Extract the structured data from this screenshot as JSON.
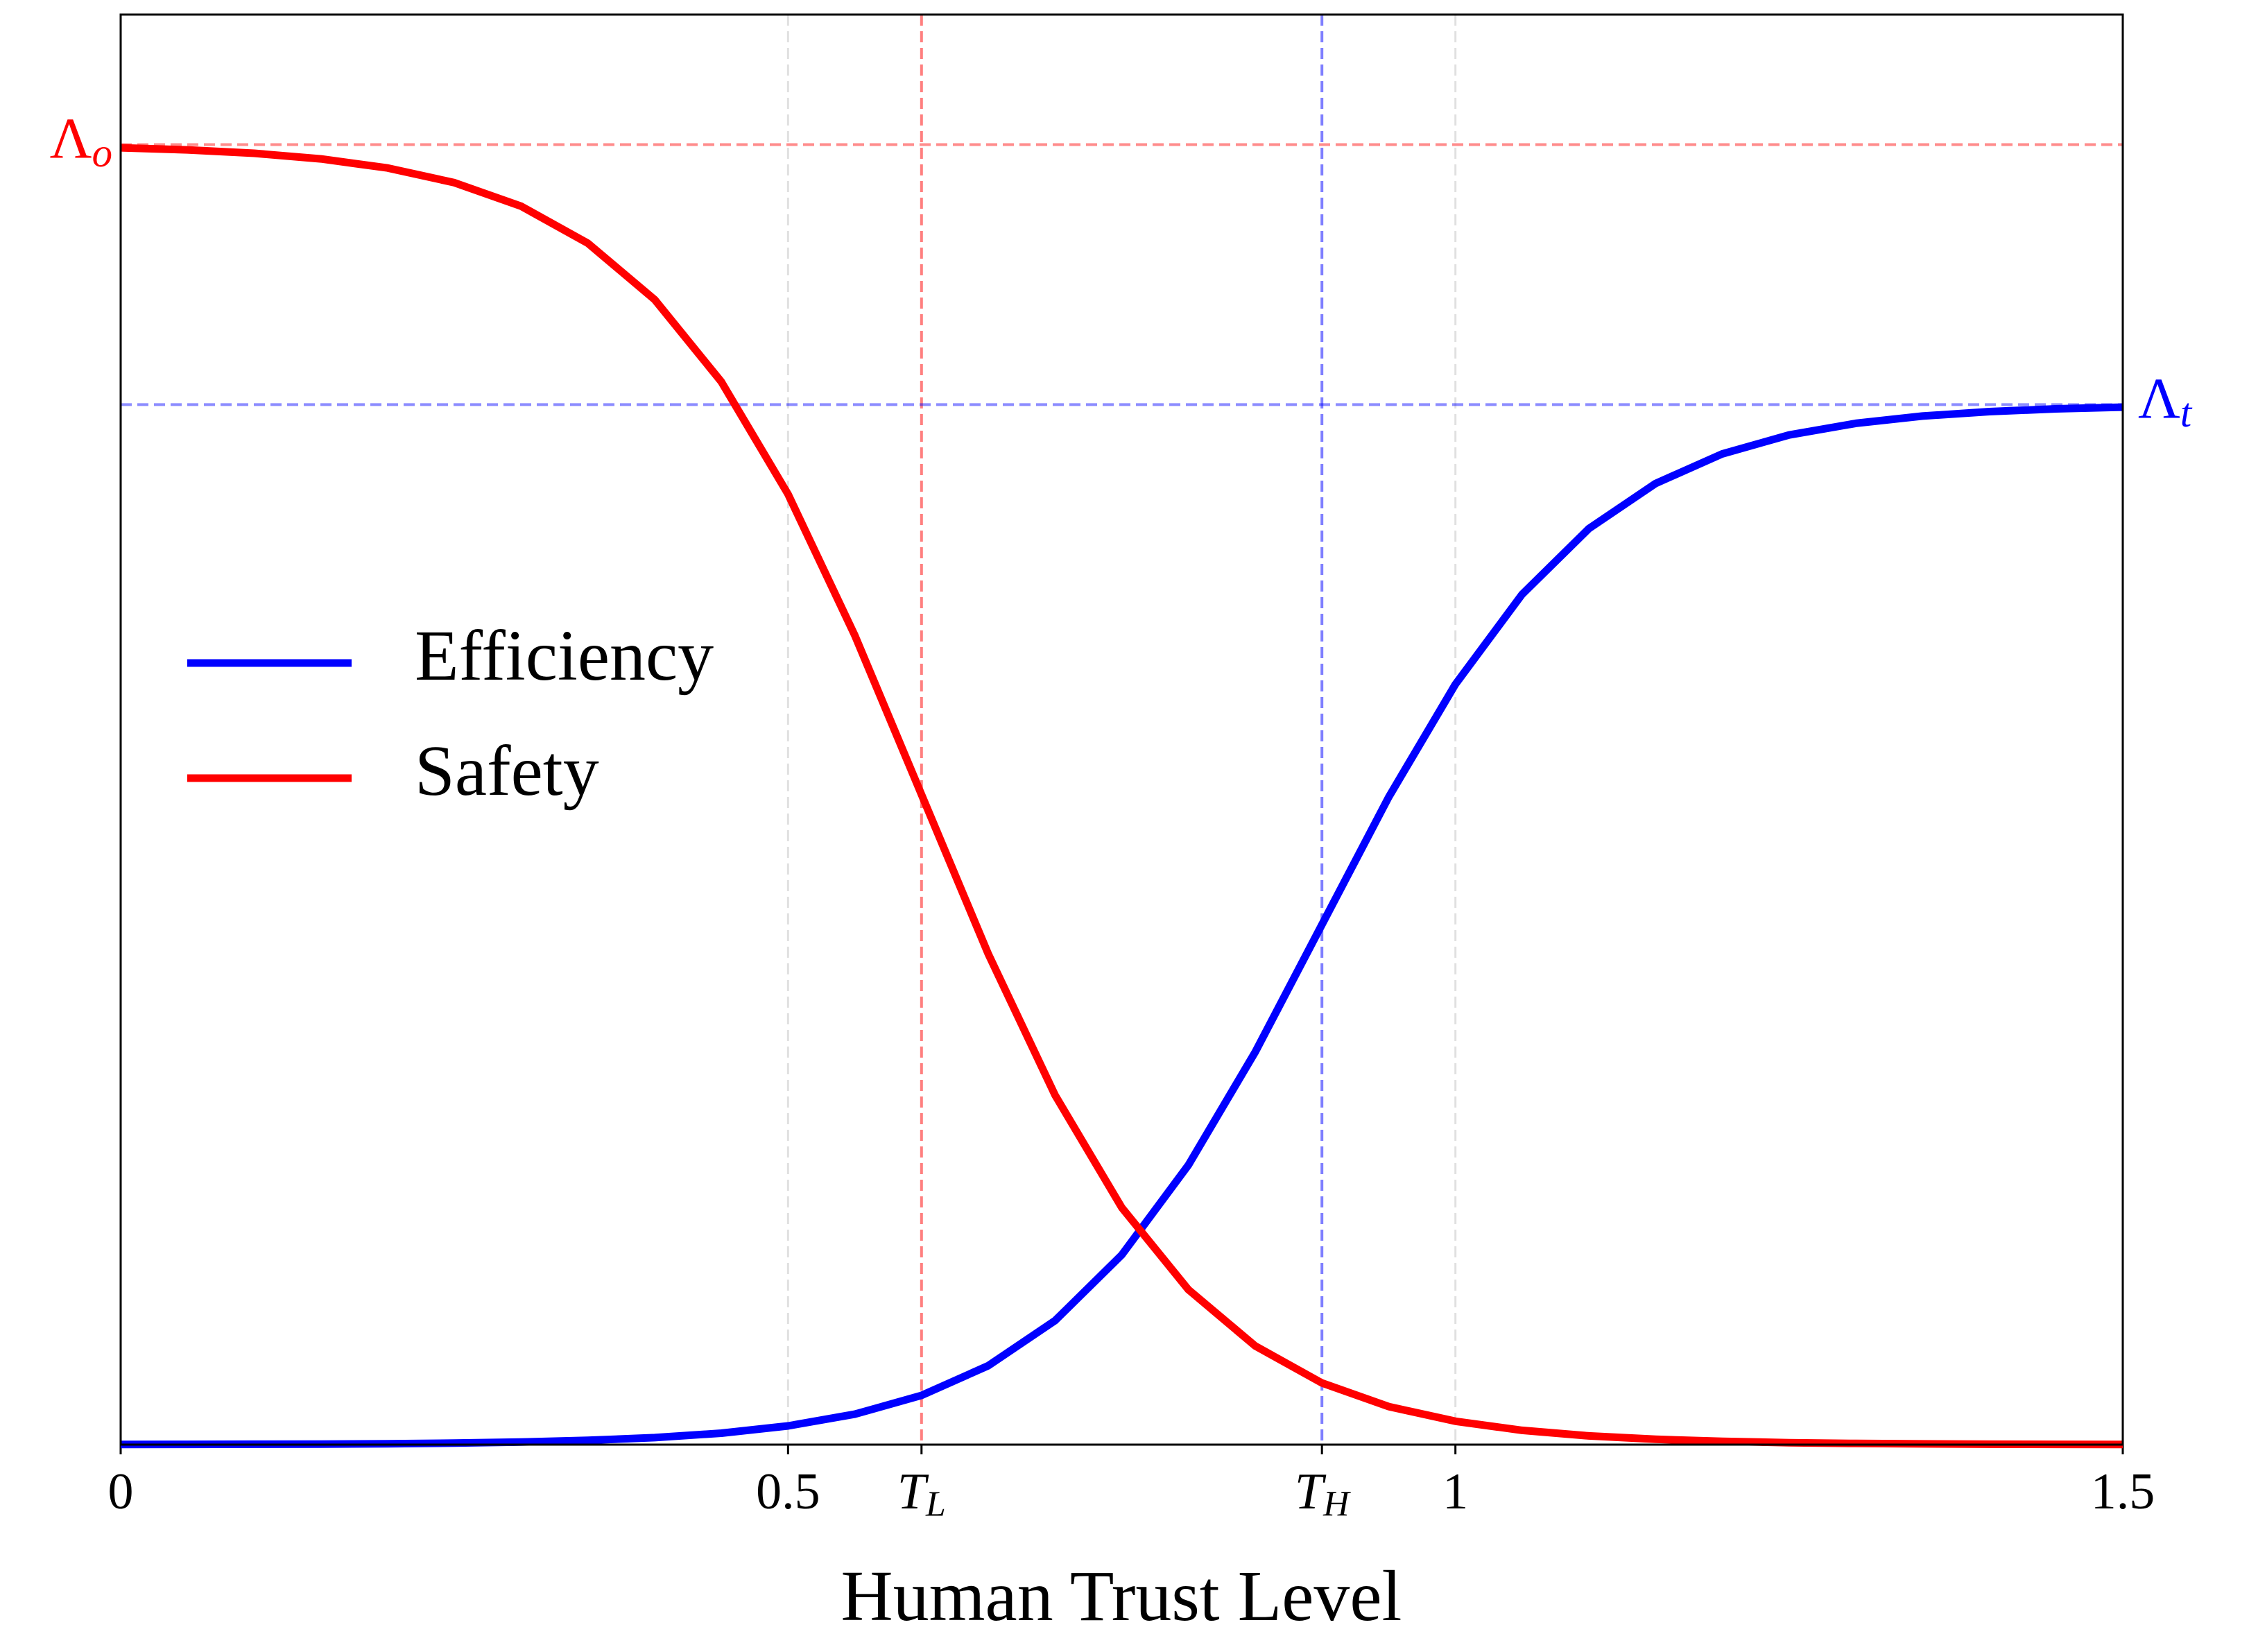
{
  "chart_data": {
    "type": "line",
    "x_label": "Human Trust Level",
    "x": [
      0,
      0.05,
      0.1,
      0.15,
      0.2,
      0.25,
      0.3,
      0.35,
      0.4,
      0.45,
      0.5,
      0.55,
      0.6,
      0.65,
      0.7,
      0.75,
      0.8,
      0.85,
      0.9,
      0.95,
      1.0,
      1.05,
      1.1,
      1.15,
      1.2,
      1.25,
      1.3,
      1.35,
      1.4,
      1.45,
      1.5
    ],
    "series": [
      {
        "name": "Efficiency",
        "color": "#0000ff",
        "values": [
          0.0001,
          0.0002,
          0.0003,
          0.0004,
          0.0007,
          0.0012,
          0.002,
          0.0033,
          0.0054,
          0.0088,
          0.0144,
          0.0234,
          0.0379,
          0.0607,
          0.0954,
          0.1459,
          0.2151,
          0.302,
          0.4,
          0.498,
          0.5849,
          0.6541,
          0.7046,
          0.7393,
          0.7621,
          0.7766,
          0.7856,
          0.7912,
          0.7946,
          0.7967,
          0.798
        ]
      },
      {
        "name": "Safety",
        "color": "#ff0000",
        "values": [
          0.9975,
          0.9959,
          0.9933,
          0.989,
          0.982,
          0.9707,
          0.9526,
          0.9241,
          0.8808,
          0.8176,
          0.7311,
          0.6225,
          0.5,
          0.3775,
          0.2689,
          0.1824,
          0.1192,
          0.0759,
          0.0474,
          0.0293,
          0.018,
          0.011,
          0.0067,
          0.0041,
          0.0025,
          0.0015,
          0.0009,
          0.0006,
          0.0003,
          0.0002,
          0.0001
        ]
      }
    ],
    "xlim": [
      0,
      1.5
    ],
    "xticks": [
      0,
      0.5,
      {
        "value": 0.6,
        "label": "TL",
        "color": "#ff0000"
      },
      {
        "value": 0.9,
        "label": "TH",
        "color": "#0000ff"
      },
      1,
      1.5
    ],
    "ylim": [
      0,
      1.1
    ],
    "yticks": [
      {
        "value": 1,
        "label": "Λo",
        "color": "#ff0000"
      }
    ],
    "y2lim": [
      0,
      1.1
    ],
    "y2ticks": [
      {
        "value": 0.8,
        "label": "Λt",
        "color": "#0000ff"
      }
    ],
    "grid": true,
    "legend": "center left"
  }
}
